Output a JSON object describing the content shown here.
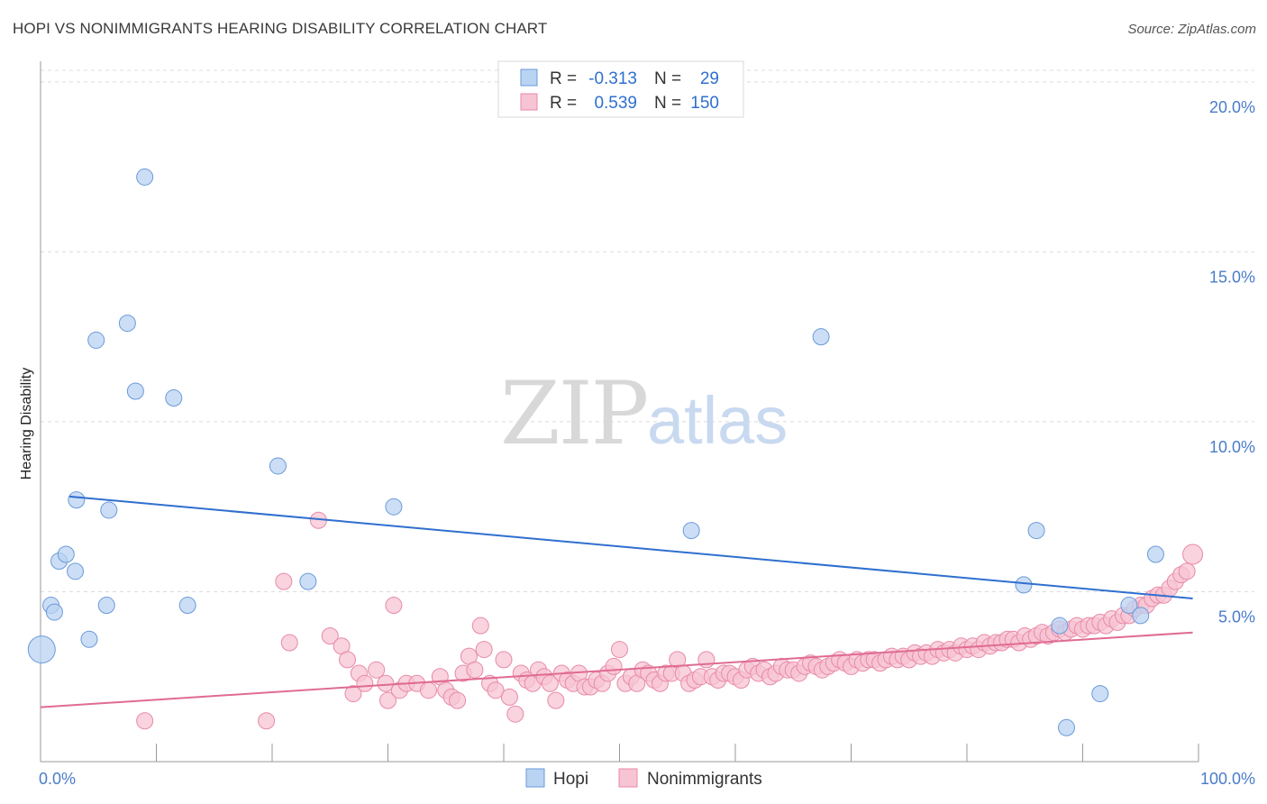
{
  "title": "HOPI VS NONIMMIGRANTS HEARING DISABILITY CORRELATION CHART",
  "source": "Source: ZipAtlas.com",
  "watermark": {
    "zip": "ZIP",
    "atlas": "atlas"
  },
  "colors": {
    "hopi_fill": "#b9d3f3",
    "hopi_stroke": "#6a9ad8",
    "hopi_line": "#2f6fcf",
    "non_fill": "#f7c4d3",
    "non_stroke": "#e889a8",
    "non_line": "#e06b93",
    "tick_text": "#4a7cc9",
    "grid": "#dcdcdc"
  },
  "legend_top": {
    "rows": [
      {
        "r_label": "R =",
        "r_value": "-0.313",
        "n_label": "N =",
        "n_value": "29",
        "series": "hopi"
      },
      {
        "r_label": "R =",
        "r_value": "0.539",
        "n_label": "N =",
        "n_value": "150",
        "series": "non"
      }
    ]
  },
  "chart_data": {
    "type": "scatter",
    "title": "HOPI VS NONIMMIGRANTS HEARING DISABILITY CORRELATION CHART",
    "xlabel": "",
    "ylabel": "Hearing Disability",
    "xlim": [
      0,
      100
    ],
    "ylim": [
      0,
      20.5
    ],
    "x_tick_labels": [
      "0.0%",
      "100.0%"
    ],
    "y_ticks": [
      5,
      10,
      15,
      20
    ],
    "y_tick_labels": [
      "5.0%",
      "10.0%",
      "15.0%",
      "20.0%"
    ],
    "grid": "horizontal dashed",
    "legend_placement": "bottom-center",
    "series": [
      {
        "name": "Hopi",
        "key": "hopi",
        "points": [
          [
            0.1,
            3.3,
            30
          ],
          [
            0.9,
            4.6,
            18
          ],
          [
            1.2,
            4.4,
            18
          ],
          [
            1.6,
            5.9,
            18
          ],
          [
            2.2,
            6.1,
            18
          ],
          [
            3.0,
            5.6,
            18
          ],
          [
            3.1,
            7.7,
            18
          ],
          [
            4.2,
            3.6,
            18
          ],
          [
            4.8,
            12.4,
            18
          ],
          [
            5.7,
            4.6,
            18
          ],
          [
            5.9,
            7.4,
            18
          ],
          [
            7.5,
            12.9,
            18
          ],
          [
            8.2,
            10.9,
            18
          ],
          [
            9.0,
            17.2,
            18
          ],
          [
            11.5,
            10.7,
            18
          ],
          [
            12.7,
            4.6,
            18
          ],
          [
            20.5,
            8.7,
            18
          ],
          [
            23.1,
            5.3,
            18
          ],
          [
            30.5,
            7.5,
            18
          ],
          [
            56.2,
            6.8,
            18
          ],
          [
            67.4,
            12.5,
            18
          ],
          [
            84.9,
            5.2,
            18
          ],
          [
            86.0,
            6.8,
            18
          ],
          [
            88.0,
            4.0,
            18
          ],
          [
            88.6,
            1.0,
            18
          ],
          [
            91.5,
            2.0,
            18
          ],
          [
            94.0,
            4.6,
            18
          ],
          [
            95.0,
            4.3,
            18
          ],
          [
            96.3,
            6.1,
            18
          ]
        ],
        "trend": [
          [
            2.5,
            7.8
          ],
          [
            99.5,
            4.8
          ]
        ]
      },
      {
        "name": "Nonimmigrants",
        "key": "non",
        "points": [
          [
            9.0,
            1.2,
            18
          ],
          [
            19.5,
            1.2,
            18
          ],
          [
            21.0,
            5.3,
            18
          ],
          [
            21.5,
            3.5,
            18
          ],
          [
            24.0,
            7.1,
            18
          ],
          [
            25.0,
            3.7,
            18
          ],
          [
            26.0,
            3.4,
            18
          ],
          [
            26.5,
            3.0,
            18
          ],
          [
            27.0,
            2.0,
            18
          ],
          [
            27.5,
            2.6,
            18
          ],
          [
            28.0,
            2.3,
            18
          ],
          [
            29.0,
            2.7,
            18
          ],
          [
            29.8,
            2.3,
            18
          ],
          [
            30.0,
            1.8,
            18
          ],
          [
            30.5,
            4.6,
            18
          ],
          [
            31.0,
            2.1,
            18
          ],
          [
            31.6,
            2.3,
            18
          ],
          [
            32.5,
            2.3,
            18
          ],
          [
            33.5,
            2.1,
            18
          ],
          [
            34.5,
            2.5,
            18
          ],
          [
            35.0,
            2.1,
            18
          ],
          [
            35.5,
            1.9,
            18
          ],
          [
            36.0,
            1.8,
            18
          ],
          [
            36.5,
            2.6,
            18
          ],
          [
            37.0,
            3.1,
            18
          ],
          [
            37.5,
            2.7,
            18
          ],
          [
            38.0,
            4.0,
            18
          ],
          [
            38.3,
            3.3,
            18
          ],
          [
            38.8,
            2.3,
            18
          ],
          [
            39.3,
            2.1,
            18
          ],
          [
            40.0,
            3.0,
            18
          ],
          [
            40.5,
            1.9,
            18
          ],
          [
            41.0,
            1.4,
            18
          ],
          [
            41.5,
            2.6,
            18
          ],
          [
            42.0,
            2.4,
            18
          ],
          [
            42.5,
            2.3,
            18
          ],
          [
            43.0,
            2.7,
            18
          ],
          [
            43.5,
            2.5,
            18
          ],
          [
            44.0,
            2.3,
            18
          ],
          [
            44.5,
            1.8,
            18
          ],
          [
            45.0,
            2.6,
            18
          ],
          [
            45.5,
            2.4,
            18
          ],
          [
            46.0,
            2.3,
            18
          ],
          [
            46.5,
            2.6,
            18
          ],
          [
            47.0,
            2.2,
            18
          ],
          [
            47.5,
            2.2,
            18
          ],
          [
            48.0,
            2.4,
            18
          ],
          [
            48.5,
            2.3,
            18
          ],
          [
            49.0,
            2.6,
            18
          ],
          [
            49.5,
            2.8,
            18
          ],
          [
            50.0,
            3.3,
            18
          ],
          [
            50.5,
            2.3,
            18
          ],
          [
            51.0,
            2.5,
            18
          ],
          [
            51.5,
            2.3,
            18
          ],
          [
            52.0,
            2.7,
            18
          ],
          [
            52.5,
            2.6,
            18
          ],
          [
            53.0,
            2.4,
            18
          ],
          [
            53.5,
            2.3,
            18
          ],
          [
            54.0,
            2.6,
            18
          ],
          [
            54.5,
            2.6,
            18
          ],
          [
            55.0,
            3.0,
            18
          ],
          [
            55.5,
            2.6,
            18
          ],
          [
            56.0,
            2.3,
            18
          ],
          [
            56.5,
            2.4,
            18
          ],
          [
            57.0,
            2.5,
            18
          ],
          [
            57.5,
            3.0,
            18
          ],
          [
            58.0,
            2.5,
            18
          ],
          [
            58.5,
            2.4,
            18
          ],
          [
            59.0,
            2.6,
            18
          ],
          [
            59.5,
            2.6,
            18
          ],
          [
            60.0,
            2.5,
            18
          ],
          [
            60.5,
            2.4,
            18
          ],
          [
            61.0,
            2.7,
            18
          ],
          [
            61.5,
            2.8,
            18
          ],
          [
            62.0,
            2.6,
            18
          ],
          [
            62.5,
            2.7,
            18
          ],
          [
            63.0,
            2.5,
            18
          ],
          [
            63.5,
            2.6,
            18
          ],
          [
            64.0,
            2.8,
            18
          ],
          [
            64.5,
            2.7,
            18
          ],
          [
            65.0,
            2.7,
            18
          ],
          [
            65.5,
            2.6,
            18
          ],
          [
            66.0,
            2.8,
            18
          ],
          [
            66.5,
            2.9,
            18
          ],
          [
            67.0,
            2.8,
            18
          ],
          [
            67.5,
            2.7,
            18
          ],
          [
            68.0,
            2.8,
            18
          ],
          [
            68.5,
            2.9,
            18
          ],
          [
            69.0,
            3.0,
            18
          ],
          [
            69.5,
            2.9,
            18
          ],
          [
            70.0,
            2.8,
            18
          ],
          [
            70.5,
            3.0,
            18
          ],
          [
            71.0,
            2.9,
            18
          ],
          [
            71.5,
            3.0,
            18
          ],
          [
            72.0,
            3.0,
            18
          ],
          [
            72.5,
            2.9,
            18
          ],
          [
            73.0,
            3.0,
            18
          ],
          [
            73.5,
            3.1,
            18
          ],
          [
            74.0,
            3.0,
            18
          ],
          [
            74.5,
            3.1,
            18
          ],
          [
            75.0,
            3.0,
            18
          ],
          [
            75.5,
            3.2,
            18
          ],
          [
            76.0,
            3.1,
            18
          ],
          [
            76.5,
            3.2,
            18
          ],
          [
            77.0,
            3.1,
            18
          ],
          [
            77.5,
            3.3,
            18
          ],
          [
            78.0,
            3.2,
            18
          ],
          [
            78.5,
            3.3,
            18
          ],
          [
            79.0,
            3.2,
            18
          ],
          [
            79.5,
            3.4,
            18
          ],
          [
            80.0,
            3.3,
            18
          ],
          [
            80.5,
            3.4,
            18
          ],
          [
            81.0,
            3.3,
            18
          ],
          [
            81.5,
            3.5,
            18
          ],
          [
            82.0,
            3.4,
            18
          ],
          [
            82.5,
            3.5,
            18
          ],
          [
            83.0,
            3.5,
            18
          ],
          [
            83.5,
            3.6,
            18
          ],
          [
            84.0,
            3.6,
            18
          ],
          [
            84.5,
            3.5,
            18
          ],
          [
            85.0,
            3.7,
            18
          ],
          [
            85.5,
            3.6,
            18
          ],
          [
            86.0,
            3.7,
            18
          ],
          [
            86.5,
            3.8,
            18
          ],
          [
            87.0,
            3.7,
            18
          ],
          [
            87.5,
            3.8,
            18
          ],
          [
            88.0,
            3.9,
            18
          ],
          [
            88.5,
            3.8,
            18
          ],
          [
            89.0,
            3.9,
            18
          ],
          [
            89.5,
            4.0,
            18
          ],
          [
            90.0,
            3.9,
            18
          ],
          [
            90.5,
            4.0,
            18
          ],
          [
            91.0,
            4.0,
            18
          ],
          [
            91.5,
            4.1,
            18
          ],
          [
            92.0,
            4.0,
            18
          ],
          [
            92.5,
            4.2,
            18
          ],
          [
            93.0,
            4.1,
            18
          ],
          [
            93.5,
            4.3,
            18
          ],
          [
            94.0,
            4.3,
            18
          ],
          [
            94.5,
            4.5,
            18
          ],
          [
            95.0,
            4.6,
            18
          ],
          [
            95.5,
            4.6,
            18
          ],
          [
            96.0,
            4.8,
            18
          ],
          [
            96.5,
            4.9,
            18
          ],
          [
            97.0,
            4.9,
            18
          ],
          [
            97.5,
            5.1,
            18
          ],
          [
            98.0,
            5.3,
            18
          ],
          [
            98.5,
            5.5,
            18
          ],
          [
            99.0,
            5.6,
            18
          ],
          [
            99.5,
            6.1,
            22
          ]
        ],
        "trend": [
          [
            0,
            1.6
          ],
          [
            99.5,
            3.8
          ]
        ]
      }
    ]
  }
}
